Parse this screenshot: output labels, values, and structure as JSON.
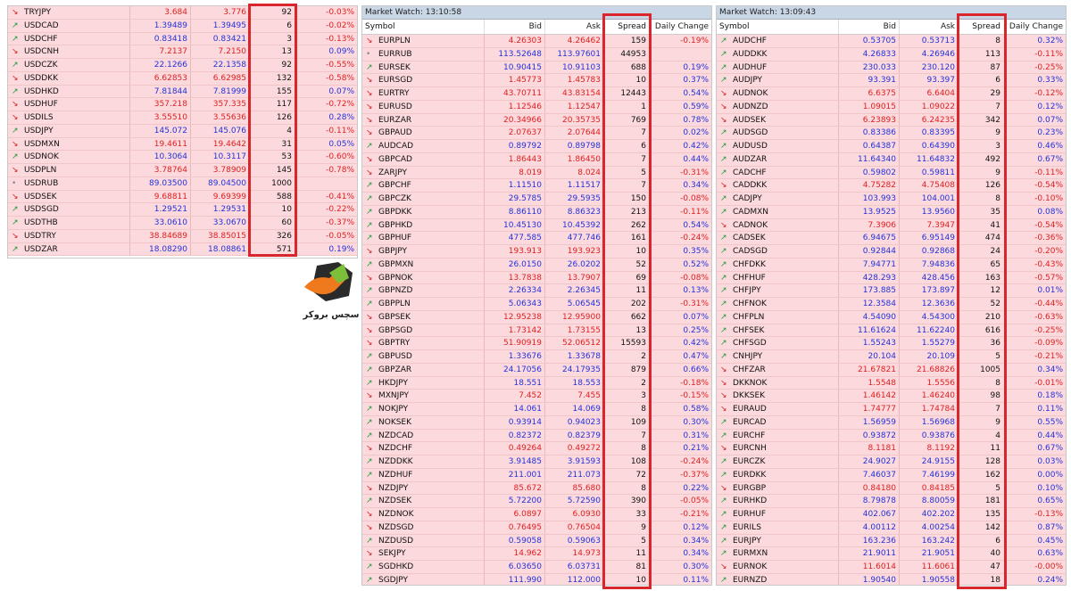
{
  "panels": [
    {
      "rows": [
        [
          "TRYJPY",
          "3.684",
          "3.776",
          "92",
          "-0.03%"
        ],
        [
          "USDCAD",
          "1.39489",
          "1.39495",
          "6",
          "-0.02%"
        ],
        [
          "USDCHF",
          "0.83418",
          "0.83421",
          "3",
          "-0.13%"
        ],
        [
          "USDCNH",
          "7.2137",
          "7.2150",
          "13",
          "0.09%"
        ],
        [
          "USDCZK",
          "22.1266",
          "22.1358",
          "92",
          "-0.55%"
        ],
        [
          "USDDKK",
          "6.62853",
          "6.62985",
          "132",
          "-0.58%"
        ],
        [
          "USDHKD",
          "7.81844",
          "7.81999",
          "155",
          "0.07%"
        ],
        [
          "USDHUF",
          "357.218",
          "357.335",
          "117",
          "-0.72%"
        ],
        [
          "USDILS",
          "3.55510",
          "3.55636",
          "126",
          "0.28%"
        ],
        [
          "USDJPY",
          "145.072",
          "145.076",
          "4",
          "-0.11%"
        ],
        [
          "USDMXN",
          "19.4611",
          "19.4642",
          "31",
          "0.05%"
        ],
        [
          "USDNOK",
          "10.3064",
          "10.3117",
          "53",
          "-0.60%"
        ],
        [
          "USDPLN",
          "3.78764",
          "3.78909",
          "145",
          "-0.78%"
        ],
        [
          "USDRUB",
          "89.03500",
          "89.04500",
          "1000",
          null
        ],
        [
          "USDSEK",
          "9.68811",
          "9.69399",
          "588",
          "-0.41%"
        ],
        [
          "USDSGD",
          "1.29521",
          "1.29531",
          "10",
          "-0.22%"
        ],
        [
          "USDTHB",
          "33.0610",
          "33.0670",
          "60",
          "-0.37%"
        ],
        [
          "USDTRY",
          "38.84689",
          "38.85015",
          "326",
          "-0.05%"
        ],
        [
          "USDZAR",
          "18.08290",
          "18.08861",
          "571",
          "0.19%"
        ]
      ],
      "trend": [
        "d",
        "u",
        "u",
        "d",
        "u",
        "d",
        "u",
        "d",
        "d",
        "u",
        "d",
        "u",
        "d",
        "n",
        "d",
        "u",
        "u",
        "d",
        "u"
      ]
    },
    {
      "title": "Market Watch: 13:10:58",
      "header": [
        "Symbol",
        "Bid",
        "Ask",
        "Spread",
        "Daily Change"
      ],
      "rows": [
        [
          "EURPLN",
          "4.26303",
          "4.26462",
          "159",
          "-0.19%"
        ],
        [
          "EURRUB",
          "113.52648",
          "113.97601",
          "44953",
          null
        ],
        [
          "EURSEK",
          "10.90415",
          "10.91103",
          "688",
          "0.19%"
        ],
        [
          "EURSGD",
          "1.45773",
          "1.45783",
          "10",
          "0.37%"
        ],
        [
          "EURTRY",
          "43.70711",
          "43.83154",
          "12443",
          "0.54%"
        ],
        [
          "EURUSD",
          "1.12546",
          "1.12547",
          "1",
          "0.59%"
        ],
        [
          "EURZAR",
          "20.34966",
          "20.35735",
          "769",
          "0.78%"
        ],
        [
          "GBPAUD",
          "2.07637",
          "2.07644",
          "7",
          "0.02%"
        ],
        [
          "AUDCAD",
          "0.89792",
          "0.89798",
          "6",
          "0.42%"
        ],
        [
          "GBPCAD",
          "1.86443",
          "1.86450",
          "7",
          "0.44%"
        ],
        [
          "ZARJPY",
          "8.019",
          "8.024",
          "5",
          "-0.31%"
        ],
        [
          "GBPCHF",
          "1.11510",
          "1.11517",
          "7",
          "0.34%"
        ],
        [
          "GBPCZK",
          "29.5785",
          "29.5935",
          "150",
          "-0.08%"
        ],
        [
          "GBPDKK",
          "8.86110",
          "8.86323",
          "213",
          "-0.11%"
        ],
        [
          "GBPHKD",
          "10.45130",
          "10.45392",
          "262",
          "0.54%"
        ],
        [
          "GBPHUF",
          "477.585",
          "477.746",
          "161",
          "-0.24%"
        ],
        [
          "GBPJPY",
          "193.913",
          "193.923",
          "10",
          "0.35%"
        ],
        [
          "GBPMXN",
          "26.0150",
          "26.0202",
          "52",
          "0.52%"
        ],
        [
          "GBPNOK",
          "13.7838",
          "13.7907",
          "69",
          "-0.08%"
        ],
        [
          "GBPNZD",
          "2.26334",
          "2.26345",
          "11",
          "0.13%"
        ],
        [
          "GBPPLN",
          "5.06343",
          "5.06545",
          "202",
          "-0.31%"
        ],
        [
          "GBPSEK",
          "12.95238",
          "12.95900",
          "662",
          "0.07%"
        ],
        [
          "GBPSGD",
          "1.73142",
          "1.73155",
          "13",
          "0.25%"
        ],
        [
          "GBPTRY",
          "51.90919",
          "52.06512",
          "15593",
          "0.42%"
        ],
        [
          "GBPUSD",
          "1.33676",
          "1.33678",
          "2",
          "0.47%"
        ],
        [
          "GBPZAR",
          "24.17056",
          "24.17935",
          "879",
          "0.66%"
        ],
        [
          "HKDJPY",
          "18.551",
          "18.553",
          "2",
          "-0.18%"
        ],
        [
          "MXNJPY",
          "7.452",
          "7.455",
          "3",
          "-0.15%"
        ],
        [
          "NOKJPY",
          "14.061",
          "14.069",
          "8",
          "0.58%"
        ],
        [
          "NOKSEK",
          "0.93914",
          "0.94023",
          "109",
          "0.30%"
        ],
        [
          "NZDCAD",
          "0.82372",
          "0.82379",
          "7",
          "0.31%"
        ],
        [
          "NZDCHF",
          "0.49264",
          "0.49272",
          "8",
          "0.21%"
        ],
        [
          "NZDDKK",
          "3.91485",
          "3.91593",
          "108",
          "-0.24%"
        ],
        [
          "NZDHUF",
          "211.001",
          "211.073",
          "72",
          "-0.37%"
        ],
        [
          "NZDJPY",
          "85.672",
          "85.680",
          "8",
          "0.22%"
        ],
        [
          "NZDSEK",
          "5.72200",
          "5.72590",
          "390",
          "-0.05%"
        ],
        [
          "NZDNOK",
          "6.0897",
          "6.0930",
          "33",
          "-0.21%"
        ],
        [
          "NZDSGD",
          "0.76495",
          "0.76504",
          "9",
          "0.12%"
        ],
        [
          "NZDUSD",
          "0.59058",
          "0.59063",
          "5",
          "0.34%"
        ],
        [
          "SEKJPY",
          "14.962",
          "14.973",
          "11",
          "0.34%"
        ],
        [
          "SGDHKD",
          "6.03650",
          "6.03731",
          "81",
          "0.30%"
        ],
        [
          "SGDJPY",
          "111.990",
          "112.000",
          "10",
          "0.11%"
        ]
      ],
      "trend": [
        "d",
        "n",
        "u",
        "d",
        "d",
        "d",
        "d",
        "d",
        "u",
        "d",
        "d",
        "u",
        "u",
        "u",
        "u",
        "u",
        "d",
        "u",
        "d",
        "u",
        "u",
        "d",
        "d",
        "d",
        "u",
        "u",
        "u",
        "d",
        "u",
        "u",
        "u",
        "d",
        "u",
        "u",
        "d",
        "u",
        "d",
        "d",
        "u",
        "d",
        "u",
        "u"
      ]
    },
    {
      "title": "Market Watch: 13:09:43",
      "header": [
        "Symbol",
        "Bid",
        "Ask",
        "Spread",
        "Daily Change"
      ],
      "rows": [
        [
          "AUDCHF",
          "0.53705",
          "0.53713",
          "8",
          "0.32%"
        ],
        [
          "AUDDKK",
          "4.26833",
          "4.26946",
          "113",
          "-0.11%"
        ],
        [
          "AUDHUF",
          "230.033",
          "230.120",
          "87",
          "-0.25%"
        ],
        [
          "AUDJPY",
          "93.391",
          "93.397",
          "6",
          "0.33%"
        ],
        [
          "AUDNOK",
          "6.6375",
          "6.6404",
          "29",
          "-0.12%"
        ],
        [
          "AUDNZD",
          "1.09015",
          "1.09022",
          "7",
          "0.12%"
        ],
        [
          "AUDSEK",
          "6.23893",
          "6.24235",
          "342",
          "0.07%"
        ],
        [
          "AUDSGD",
          "0.83386",
          "0.83395",
          "9",
          "0.23%"
        ],
        [
          "AUDUSD",
          "0.64387",
          "0.64390",
          "3",
          "0.46%"
        ],
        [
          "AUDZAR",
          "11.64340",
          "11.64832",
          "492",
          "0.67%"
        ],
        [
          "CADCHF",
          "0.59802",
          "0.59811",
          "9",
          "-0.11%"
        ],
        [
          "CADDKK",
          "4.75282",
          "4.75408",
          "126",
          "-0.54%"
        ],
        [
          "CADJPY",
          "103.993",
          "104.001",
          "8",
          "-0.10%"
        ],
        [
          "CADMXN",
          "13.9525",
          "13.9560",
          "35",
          "0.08%"
        ],
        [
          "CADNOK",
          "7.3906",
          "7.3947",
          "41",
          "-0.54%"
        ],
        [
          "CADSEK",
          "6.94675",
          "6.95149",
          "474",
          "-0.36%"
        ],
        [
          "CADSGD",
          "0.92844",
          "0.92868",
          "24",
          "-0.20%"
        ],
        [
          "CHFDKK",
          "7.94771",
          "7.94836",
          "65",
          "-0.43%"
        ],
        [
          "CHFHUF",
          "428.293",
          "428.456",
          "163",
          "-0.57%"
        ],
        [
          "CHFJPY",
          "173.885",
          "173.897",
          "12",
          "0.01%"
        ],
        [
          "CHFNOK",
          "12.3584",
          "12.3636",
          "52",
          "-0.44%"
        ],
        [
          "CHFPLN",
          "4.54090",
          "4.54300",
          "210",
          "-0.63%"
        ],
        [
          "CHFSEK",
          "11.61624",
          "11.62240",
          "616",
          "-0.25%"
        ],
        [
          "CHFSGD",
          "1.55243",
          "1.55279",
          "36",
          "-0.09%"
        ],
        [
          "CNHJPY",
          "20.104",
          "20.109",
          "5",
          "-0.21%"
        ],
        [
          "CHFZAR",
          "21.67821",
          "21.68826",
          "1005",
          "0.34%"
        ],
        [
          "DKKNOK",
          "1.5548",
          "1.5556",
          "8",
          "-0.01%"
        ],
        [
          "DKKSEK",
          "1.46142",
          "1.46240",
          "98",
          "0.18%"
        ],
        [
          "EURAUD",
          "1.74777",
          "1.74784",
          "7",
          "0.11%"
        ],
        [
          "EURCAD",
          "1.56959",
          "1.56968",
          "9",
          "0.55%"
        ],
        [
          "EURCHF",
          "0.93872",
          "0.93876",
          "4",
          "0.44%"
        ],
        [
          "EURCNH",
          "8.1181",
          "8.1192",
          "11",
          "0.67%"
        ],
        [
          "EURCZK",
          "24.9027",
          "24.9155",
          "128",
          "0.03%"
        ],
        [
          "EURDKK",
          "7.46037",
          "7.46199",
          "162",
          "0.00%"
        ],
        [
          "EURGBP",
          "0.84180",
          "0.84185",
          "5",
          "0.10%"
        ],
        [
          "EURHKD",
          "8.79878",
          "8.80059",
          "181",
          "0.65%"
        ],
        [
          "EURHUF",
          "402.067",
          "402.202",
          "135",
          "-0.13%"
        ],
        [
          "EURILS",
          "4.00112",
          "4.00254",
          "142",
          "0.87%"
        ],
        [
          "EURJPY",
          "163.236",
          "163.242",
          "6",
          "0.45%"
        ],
        [
          "EURMXN",
          "21.9011",
          "21.9051",
          "40",
          "0.63%"
        ],
        [
          "EURNOK",
          "11.6014",
          "11.6061",
          "47",
          "-0.00%"
        ],
        [
          "EURNZD",
          "1.90540",
          "1.90558",
          "18",
          "0.24%"
        ]
      ],
      "trend": [
        "u",
        "u",
        "u",
        "u",
        "d",
        "d",
        "d",
        "u",
        "u",
        "u",
        "u",
        "d",
        "u",
        "u",
        "d",
        "u",
        "u",
        "u",
        "u",
        "u",
        "u",
        "u",
        "u",
        "u",
        "u",
        "d",
        "d",
        "d",
        "d",
        "u",
        "u",
        "d",
        "u",
        "u",
        "d",
        "u",
        "u",
        "u",
        "u",
        "u",
        "d",
        "u"
      ]
    }
  ],
  "logo": {
    "text": "سچس بروکر"
  }
}
